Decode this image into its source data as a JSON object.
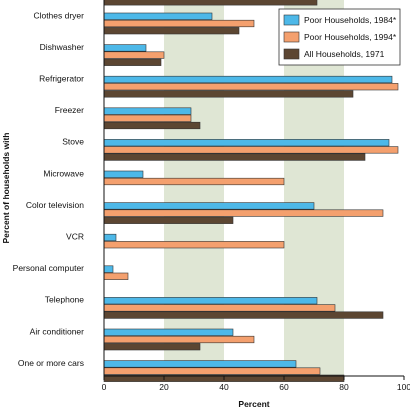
{
  "chart_data": {
    "type": "bar",
    "orientation": "horizontal",
    "title": "",
    "xlabel": "Percent",
    "ylabel": "Percent of households with",
    "xlim": [
      0,
      100
    ],
    "x_ticks": [
      "0",
      "20",
      "40",
      "60",
      "80",
      "100"
    ],
    "grid": "alternating vertical bands",
    "legend_position": "top-right",
    "categories": [
      "Clothes dryer",
      "Dishwasher",
      "Refrigerator",
      "Freezer",
      "Stove",
      "Microwave",
      "Color television",
      "VCR",
      "Personal computer",
      "Telephone",
      "Air conditioner",
      "One or more cars"
    ],
    "series": [
      {
        "name": "Poor Households, 1984*",
        "color": "#4db8e8",
        "values": [
          36,
          14,
          96,
          29,
          95,
          13,
          70,
          4,
          3,
          71,
          43,
          64
        ]
      },
      {
        "name": "Poor Households, 1994*",
        "color": "#f4a06e",
        "values": [
          50,
          20,
          98,
          29,
          98,
          60,
          93,
          60,
          8,
          77,
          50,
          72
        ]
      },
      {
        "name": "All Households, 1971",
        "color": "#5c4632",
        "values": [
          45,
          19,
          83,
          32,
          87,
          null,
          43,
          null,
          null,
          93,
          32,
          80
        ]
      }
    ],
    "partial_top_bar": {
      "series": "All Households, 1971",
      "value": 71
    },
    "colors": {
      "band_shaded": "#dfe6d4",
      "band_plain": "#ffffff",
      "bar_border": "#333333"
    }
  }
}
